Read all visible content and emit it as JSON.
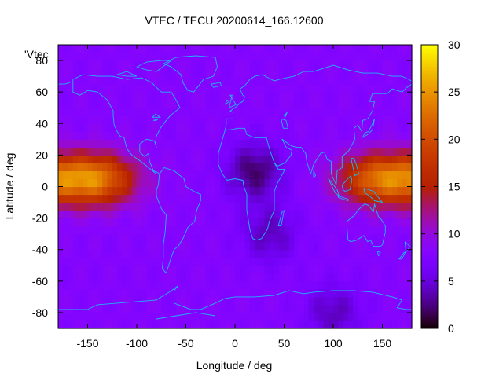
{
  "chart_data": {
    "type": "heatmap",
    "title": "VTEC / TECU 20200614_166.12600",
    "xlabel": "Longitude / deg",
    "ylabel": "Latitude / deg",
    "xlim": [
      -180,
      180
    ],
    "ylim": [
      -90,
      90
    ],
    "x_ticks": [
      -150,
      -100,
      -50,
      0,
      50,
      100,
      150
    ],
    "y_ticks": [
      -80,
      -60,
      -40,
      -20,
      0,
      20,
      40,
      60,
      80
    ],
    "colorbar": {
      "range": [
        0,
        30
      ],
      "ticks": [
        0,
        5,
        10,
        15,
        20,
        25,
        30
      ]
    },
    "legend_label": "'Vtec_",
    "overlay": "coastlines",
    "grid_resolution_deg": {
      "lon": 5,
      "lat": 5
    },
    "approx_field": {
      "background_tecu": 8,
      "equatorial_peaks": [
        {
          "lon_center": -145,
          "lat_center": 5,
          "peak_tecu": 24
        },
        {
          "lon_center": 150,
          "lat_center": 5,
          "peak_tecu": 23
        }
      ],
      "low_regions": [
        {
          "lon_center": 20,
          "lat_center": 10,
          "min_tecu": 2
        },
        {
          "lon_center": 35,
          "lat_center": -30,
          "min_tecu": 4
        },
        {
          "lon_center": 100,
          "lat_center": -80,
          "min_tecu": 4
        }
      ]
    },
    "colors": {
      "coastline": "#1fb5ff",
      "plot_border": "#000000"
    }
  }
}
